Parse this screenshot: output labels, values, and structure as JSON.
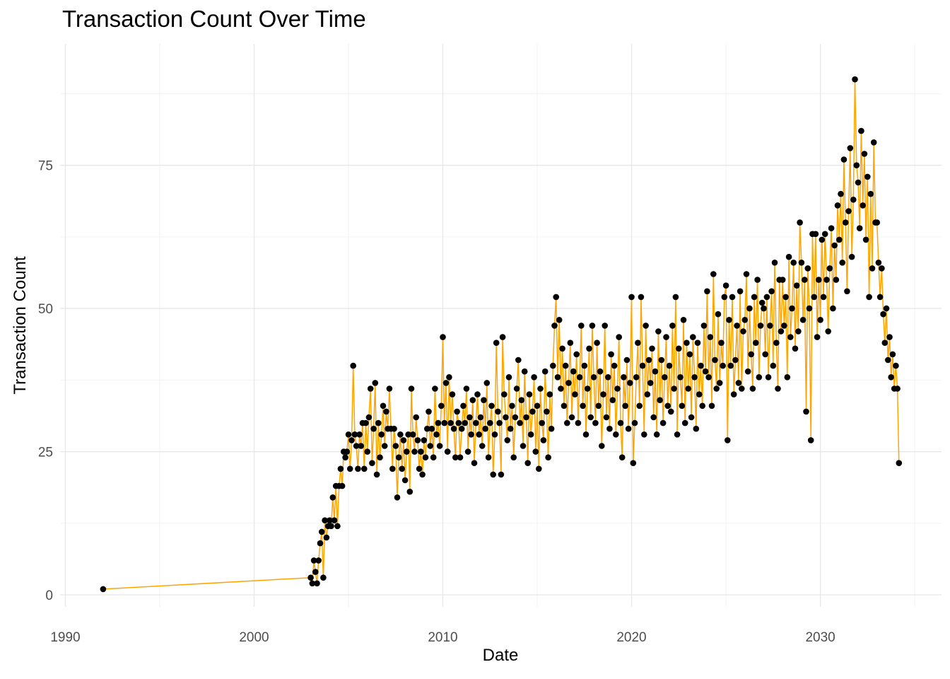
{
  "chart_data": {
    "type": "line",
    "title": "Transaction Count Over Time",
    "xlabel": "Date",
    "ylabel": "Transaction Count",
    "x_ticks": [
      1990,
      2000,
      2010,
      2020,
      2030
    ],
    "x_minor_ticks": [
      1995,
      2005,
      2015,
      2025,
      2035
    ],
    "y_ticks": [
      0,
      25,
      50,
      75
    ],
    "y_minor_ticks": [
      12.5,
      37.5,
      62.5,
      87.5
    ],
    "xlim": [
      1989.72,
      2036.42
    ],
    "ylim": [
      -2.1,
      96.2
    ],
    "grid": true,
    "legend_position": "none",
    "colors": {
      "line": "#FFA500",
      "point": "#000000",
      "grid_major": "#E6E6E6",
      "grid_minor": "#F1F1F1",
      "tick_text": "#4D4D4D",
      "title_text": "#000000",
      "background": "#FFFFFF"
    },
    "series": {
      "name": "Transaction Count",
      "pre_gap_points": [
        [
          1992.0,
          1
        ]
      ],
      "monthly_from": "2003-01",
      "years": [
        {
          "year": 2003,
          "values": [
            3,
            2,
            6,
            4,
            2,
            6,
            9,
            11,
            3,
            13,
            10,
            12
          ]
        },
        {
          "year": 2004,
          "values": [
            13,
            12,
            17,
            13,
            19,
            12,
            19,
            22,
            19,
            25,
            24,
            25
          ]
        },
        {
          "year": 2005,
          "values": [
            28,
            22,
            27,
            40,
            28,
            26,
            22,
            28,
            26,
            30,
            22,
            30
          ]
        },
        {
          "year": 2006,
          "values": [
            25,
            31,
            36,
            23,
            29,
            37,
            21,
            30,
            24,
            28,
            33,
            26
          ]
        },
        {
          "year": 2007,
          "values": [
            32,
            29,
            36,
            29,
            22,
            29,
            26,
            17,
            24,
            28,
            22,
            27
          ]
        },
        {
          "year": 2008,
          "values": [
            20,
            25,
            28,
            18,
            36,
            28,
            25,
            31,
            27,
            22,
            25,
            21
          ]
        },
        {
          "year": 2009,
          "values": [
            27,
            24,
            29,
            32,
            26,
            29,
            24,
            36,
            28,
            30,
            26,
            33
          ]
        },
        {
          "year": 2010,
          "values": [
            45,
            30,
            37,
            25,
            38,
            30,
            35,
            29,
            24,
            32,
            30,
            24
          ]
        },
        {
          "year": 2011,
          "values": [
            29,
            33,
            30,
            36,
            25,
            31,
            28,
            34,
            23,
            30,
            35,
            28
          ]
        },
        {
          "year": 2012,
          "values": [
            31,
            26,
            34,
            29,
            37,
            24,
            30,
            33,
            21,
            28,
            44,
            32
          ]
        },
        {
          "year": 2013,
          "values": [
            30,
            21,
            45,
            35,
            31,
            27,
            38,
            29,
            33,
            24,
            31,
            36
          ]
        },
        {
          "year": 2014,
          "values": [
            41,
            30,
            34,
            26,
            39,
            31,
            23,
            35,
            28,
            32,
            38,
            25
          ]
        },
        {
          "year": 2015,
          "values": [
            33,
            22,
            36,
            30,
            27,
            39,
            32,
            24,
            35,
            29,
            40,
            47
          ]
        },
        {
          "year": 2016,
          "values": [
            52,
            38,
            48,
            36,
            43,
            33,
            40,
            30,
            37,
            44,
            31,
            39
          ]
        },
        {
          "year": 2017,
          "values": [
            35,
            42,
            30,
            38,
            47,
            33,
            40,
            28,
            36,
            43,
            31,
            47
          ]
        },
        {
          "year": 2018,
          "values": [
            38,
            30,
            44,
            33,
            39,
            26,
            35,
            47,
            31,
            38,
            29,
            42
          ]
        },
        {
          "year": 2019,
          "values": [
            34,
            40,
            28,
            36,
            45,
            30,
            24,
            38,
            33,
            41,
            29,
            37
          ]
        },
        {
          "year": 2020,
          "values": [
            52,
            23,
            30,
            38,
            44,
            33,
            52,
            40,
            28,
            47,
            35,
            41
          ]
        },
        {
          "year": 2021,
          "values": [
            37,
            43,
            31,
            39,
            28,
            46,
            34,
            41,
            30,
            38,
            45,
            33
          ]
        },
        {
          "year": 2022,
          "values": [
            40,
            32,
            47,
            36,
            52,
            28,
            43,
            38,
            33,
            48,
            30,
            44
          ]
        },
        {
          "year": 2023,
          "values": [
            36,
            42,
            31,
            45,
            38,
            29,
            44,
            35,
            40,
            33,
            47,
            39
          ]
        },
        {
          "year": 2024,
          "values": [
            53,
            38,
            45,
            33,
            56,
            41,
            36,
            49,
            37,
            44,
            40,
            52
          ]
        },
        {
          "year": 2025,
          "values": [
            54,
            27,
            48,
            40,
            52,
            35,
            41,
            47,
            37,
            53,
            36,
            46
          ]
        },
        {
          "year": 2026,
          "values": [
            48,
            56,
            39,
            50,
            42,
            36,
            52,
            44,
            55,
            38,
            47,
            51
          ]
        },
        {
          "year": 2027,
          "values": [
            50,
            42,
            52,
            38,
            47,
            53,
            40,
            58,
            44,
            36,
            55,
            46
          ]
        },
        {
          "year": 2028,
          "values": [
            55,
            47,
            52,
            38,
            59,
            45,
            50,
            58,
            43,
            54,
            46,
            65
          ]
        },
        {
          "year": 2029,
          "values": [
            58,
            48,
            55,
            32,
            57,
            50,
            27,
            63,
            52,
            63,
            45,
            55
          ]
        },
        {
          "year": 2030,
          "values": [
            48,
            62,
            52,
            63,
            55,
            46,
            57,
            64,
            50,
            61,
            55,
            68
          ]
        },
        {
          "year": 2031,
          "values": [
            62,
            70,
            58,
            76,
            65,
            53,
            67,
            78,
            59,
            69,
            90,
            75
          ]
        },
        {
          "year": 2032,
          "values": [
            72,
            64,
            81,
            68,
            77,
            62,
            73,
            52,
            70,
            57,
            79,
            65
          ]
        },
        {
          "year": 2033,
          "values": [
            65,
            58,
            52,
            57,
            49,
            44,
            50,
            41,
            45,
            38,
            42,
            36
          ]
        },
        {
          "year": 2034,
          "values": [
            40,
            36,
            23
          ]
        }
      ]
    }
  }
}
